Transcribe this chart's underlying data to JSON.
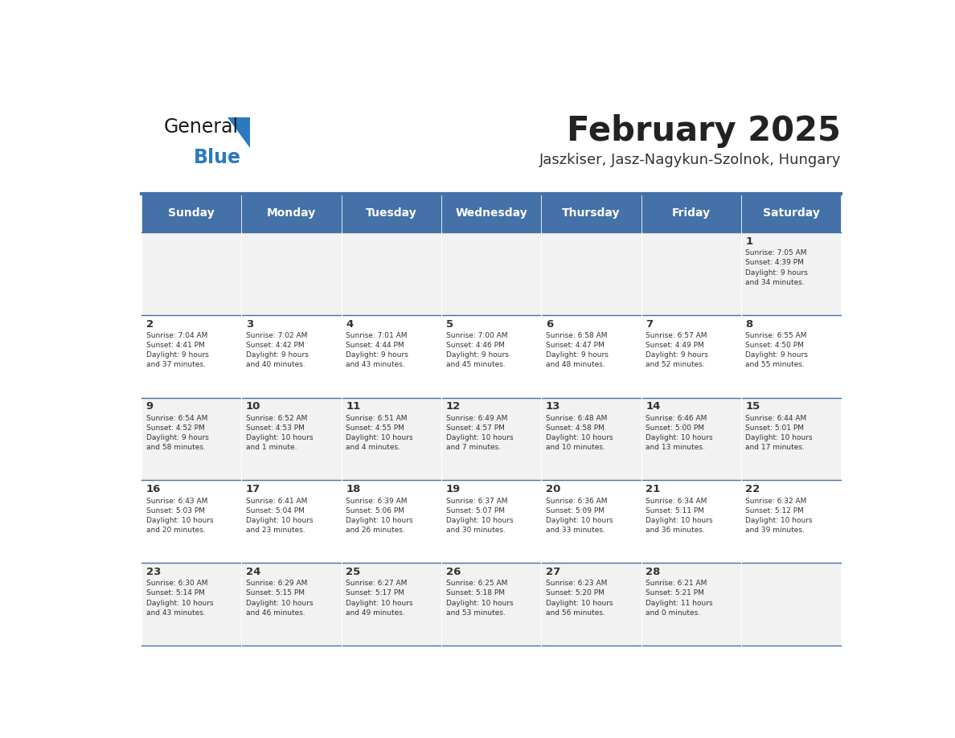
{
  "title": "February 2025",
  "subtitle": "Jaszkiser, Jasz-Nagykun-Szolnok, Hungary",
  "days_of_week": [
    "Sunday",
    "Monday",
    "Tuesday",
    "Wednesday",
    "Thursday",
    "Friday",
    "Saturday"
  ],
  "header_bg": "#4472a8",
  "header_text": "#ffffff",
  "cell_bg_even": "#f2f2f2",
  "cell_bg_odd": "#ffffff",
  "separator_color": "#4472a8",
  "day_number_color": "#333333",
  "info_text_color": "#333333",
  "title_color": "#222222",
  "subtitle_color": "#333333",
  "blue_color": "#2a7abf",
  "calendar_data": [
    [
      null,
      null,
      null,
      null,
      null,
      null,
      1
    ],
    [
      2,
      3,
      4,
      5,
      6,
      7,
      8
    ],
    [
      9,
      10,
      11,
      12,
      13,
      14,
      15
    ],
    [
      16,
      17,
      18,
      19,
      20,
      21,
      22
    ],
    [
      23,
      24,
      25,
      26,
      27,
      28,
      null
    ]
  ],
  "sunrise_data": {
    "1": "Sunrise: 7:05 AM\nSunset: 4:39 PM\nDaylight: 9 hours\nand 34 minutes.",
    "2": "Sunrise: 7:04 AM\nSunset: 4:41 PM\nDaylight: 9 hours\nand 37 minutes.",
    "3": "Sunrise: 7:02 AM\nSunset: 4:42 PM\nDaylight: 9 hours\nand 40 minutes.",
    "4": "Sunrise: 7:01 AM\nSunset: 4:44 PM\nDaylight: 9 hours\nand 43 minutes.",
    "5": "Sunrise: 7:00 AM\nSunset: 4:46 PM\nDaylight: 9 hours\nand 45 minutes.",
    "6": "Sunrise: 6:58 AM\nSunset: 4:47 PM\nDaylight: 9 hours\nand 48 minutes.",
    "7": "Sunrise: 6:57 AM\nSunset: 4:49 PM\nDaylight: 9 hours\nand 52 minutes.",
    "8": "Sunrise: 6:55 AM\nSunset: 4:50 PM\nDaylight: 9 hours\nand 55 minutes.",
    "9": "Sunrise: 6:54 AM\nSunset: 4:52 PM\nDaylight: 9 hours\nand 58 minutes.",
    "10": "Sunrise: 6:52 AM\nSunset: 4:53 PM\nDaylight: 10 hours\nand 1 minute.",
    "11": "Sunrise: 6:51 AM\nSunset: 4:55 PM\nDaylight: 10 hours\nand 4 minutes.",
    "12": "Sunrise: 6:49 AM\nSunset: 4:57 PM\nDaylight: 10 hours\nand 7 minutes.",
    "13": "Sunrise: 6:48 AM\nSunset: 4:58 PM\nDaylight: 10 hours\nand 10 minutes.",
    "14": "Sunrise: 6:46 AM\nSunset: 5:00 PM\nDaylight: 10 hours\nand 13 minutes.",
    "15": "Sunrise: 6:44 AM\nSunset: 5:01 PM\nDaylight: 10 hours\nand 17 minutes.",
    "16": "Sunrise: 6:43 AM\nSunset: 5:03 PM\nDaylight: 10 hours\nand 20 minutes.",
    "17": "Sunrise: 6:41 AM\nSunset: 5:04 PM\nDaylight: 10 hours\nand 23 minutes.",
    "18": "Sunrise: 6:39 AM\nSunset: 5:06 PM\nDaylight: 10 hours\nand 26 minutes.",
    "19": "Sunrise: 6:37 AM\nSunset: 5:07 PM\nDaylight: 10 hours\nand 30 minutes.",
    "20": "Sunrise: 6:36 AM\nSunset: 5:09 PM\nDaylight: 10 hours\nand 33 minutes.",
    "21": "Sunrise: 6:34 AM\nSunset: 5:11 PM\nDaylight: 10 hours\nand 36 minutes.",
    "22": "Sunrise: 6:32 AM\nSunset: 5:12 PM\nDaylight: 10 hours\nand 39 minutes.",
    "23": "Sunrise: 6:30 AM\nSunset: 5:14 PM\nDaylight: 10 hours\nand 43 minutes.",
    "24": "Sunrise: 6:29 AM\nSunset: 5:15 PM\nDaylight: 10 hours\nand 46 minutes.",
    "25": "Sunrise: 6:27 AM\nSunset: 5:17 PM\nDaylight: 10 hours\nand 49 minutes.",
    "26": "Sunrise: 6:25 AM\nSunset: 5:18 PM\nDaylight: 10 hours\nand 53 minutes.",
    "27": "Sunrise: 6:23 AM\nSunset: 5:20 PM\nDaylight: 10 hours\nand 56 minutes.",
    "28": "Sunrise: 6:21 AM\nSunset: 5:21 PM\nDaylight: 11 hours\nand 0 minutes."
  }
}
